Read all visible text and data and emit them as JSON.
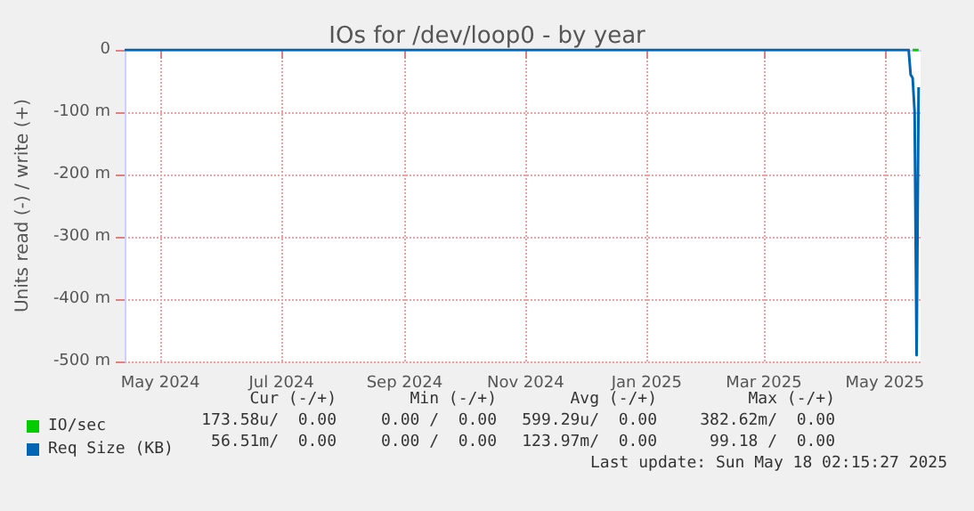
{
  "chart_data": {
    "type": "line",
    "title": "IOs for /dev/loop0 - by year",
    "ylabel": "Units read (-) / write (+)",
    "xlim": [
      "2024-04-13",
      "2025-05-19"
    ],
    "xticks": [
      {
        "value": "2024-05-01",
        "label": "May 2024"
      },
      {
        "value": "2024-07-01",
        "label": "Jul 2024"
      },
      {
        "value": "2024-09-01",
        "label": "Sep 2024"
      },
      {
        "value": "2024-11-01",
        "label": "Nov 2024"
      },
      {
        "value": "2025-01-01",
        "label": "Jan 2025"
      },
      {
        "value": "2025-03-01",
        "label": "Mar 2025"
      },
      {
        "value": "2025-05-01",
        "label": "May 2025"
      }
    ],
    "ylim": [
      -500,
      0
    ],
    "yticks": [
      {
        "value": -500,
        "label": "-500 m"
      },
      {
        "value": -400,
        "label": "-400 m"
      },
      {
        "value": -300,
        "label": "-300 m"
      },
      {
        "value": -200,
        "label": "-200 m"
      },
      {
        "value": -100,
        "label": "-100 m"
      },
      0
    ],
    "series": [
      {
        "name": "IO/sec",
        "color": "#00cc00",
        "x": [
          "2025-05-15",
          "2025-05-16",
          "2025-05-17",
          "2025-05-18"
        ],
        "values": [
          0,
          0,
          0,
          0
        ]
      },
      {
        "name": "Req Size (KB)",
        "color": "#0066b3",
        "x": [
          "2024-04-13",
          "2025-05-13",
          "2025-05-14",
          "2025-05-15",
          "2025-05-16",
          "2025-05-17",
          "2025-05-18"
        ],
        "values": [
          0,
          0,
          -40,
          -45,
          -100,
          -490,
          -60
        ]
      }
    ],
    "annotations": [
      "Cur (-/+)",
      "Min (-/+)",
      "Avg (-/+)",
      "Max (-/+)",
      "173.58u/  0.00",
      "0.00 /  0.00",
      "599.29u/  0.00",
      "382.62m/  0.00",
      "56.51m/  0.00",
      "0.00 /  0.00",
      "123.97m/  0.00",
      "99.18 /  0.00",
      "Last update: Sun May 18 02:15:27 2025"
    ],
    "grid": true,
    "legend": "bottom left",
    "marker": "none",
    "line_style": "solid"
  }
}
